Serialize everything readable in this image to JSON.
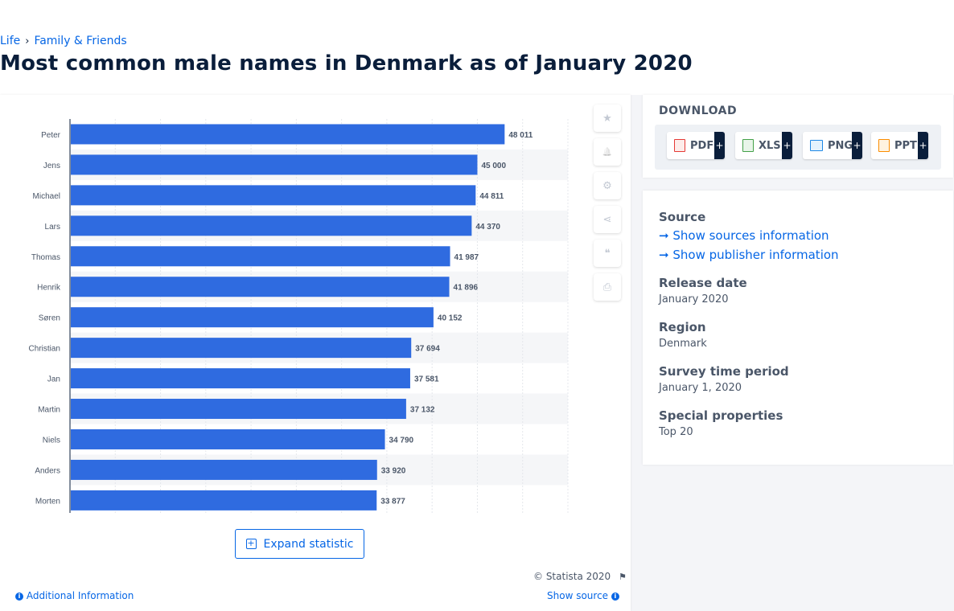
{
  "breadcrumb": {
    "items": [
      "Life",
      "Family & Friends"
    ],
    "separator": "›"
  },
  "page_title": "Most common male names in Denmark as of January 2020",
  "chart_data": {
    "type": "bar",
    "orientation": "horizontal",
    "categories": [
      "Peter",
      "Jens",
      "Michael",
      "Lars",
      "Thomas",
      "Henrik",
      "Søren",
      "Christian",
      "Jan",
      "Martin",
      "Niels",
      "Anders",
      "Morten"
    ],
    "values": [
      48011,
      45000,
      44811,
      44370,
      41987,
      41896,
      40152,
      37694,
      37581,
      37132,
      34790,
      33920,
      33877
    ],
    "value_labels": [
      "48 011",
      "45 000",
      "44 811",
      "44 370",
      "41 987",
      "41 896",
      "40 152",
      "37 694",
      "37 581",
      "37 132",
      "34 790",
      "33 920",
      "33 877"
    ],
    "xlim": [
      0,
      55000
    ],
    "grid": true,
    "bar_color": "#2f6be0",
    "title": "",
    "xlabel": "",
    "ylabel": ""
  },
  "tools": [
    {
      "icon": "star-icon",
      "glyph": "★"
    },
    {
      "icon": "bell-icon",
      "glyph": "🔔"
    },
    {
      "icon": "gear-icon",
      "glyph": "⚙"
    },
    {
      "icon": "share-icon",
      "glyph": "⋖"
    },
    {
      "icon": "quote-icon",
      "glyph": "❝"
    },
    {
      "icon": "print-icon",
      "glyph": "⎙"
    }
  ],
  "expand_label": "Expand statistic",
  "copyright": "© Statista 2020",
  "additional_info": "Additional Information",
  "show_source": "Show source",
  "download": {
    "title": "DOWNLOAD",
    "buttons": [
      {
        "label": "PDF",
        "color": "#e53935"
      },
      {
        "label": "XLS",
        "color": "#43a047"
      },
      {
        "label": "PNG",
        "color": "#1e88e5"
      },
      {
        "label": "PPT",
        "color": "#fb8c00"
      }
    ]
  },
  "meta": {
    "source_title": "Source",
    "show_sources": "Show sources information",
    "show_publisher": "Show publisher information",
    "release_title": "Release date",
    "release_value": "January 2020",
    "region_title": "Region",
    "region_value": "Denmark",
    "survey_title": "Survey time period",
    "survey_value": "January 1, 2020",
    "special_title": "Special properties",
    "special_value": "Top 20"
  },
  "colors": {
    "accent": "#0666e5",
    "bar": "#2f6be0",
    "title": "#0a1e3b"
  }
}
